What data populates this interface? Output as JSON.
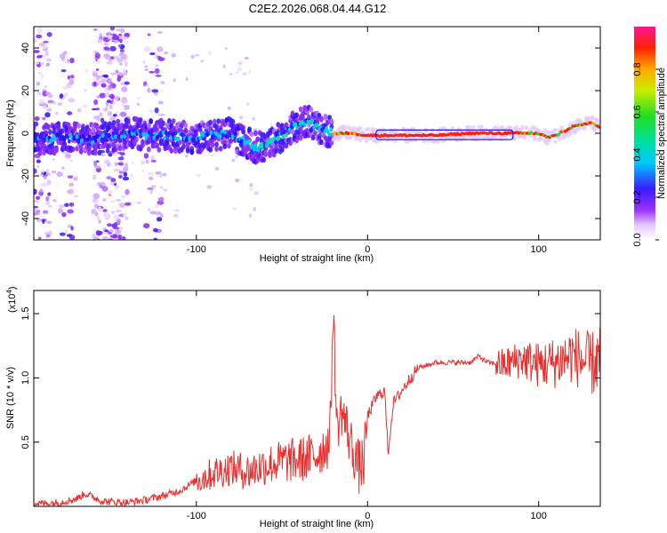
{
  "title": "C2E2.2026.068.04.44.G12",
  "chart_data": [
    {
      "type": "heatmap",
      "xlabel": "Height of straight line (km)",
      "ylabel": "Frequency (Hz)",
      "xlim": [
        -195,
        136
      ],
      "ylim": [
        -50,
        50
      ],
      "xticks": [
        -100,
        0,
        100
      ],
      "yticks": [
        -40,
        -20,
        0,
        20,
        40
      ],
      "colorbar": {
        "label": "Normalized spectral amplitude",
        "range": [
          0.0,
          1.0
        ],
        "ticks": [
          "0.0",
          "0.2",
          "0.4",
          "0.6",
          "0.8"
        ]
      },
      "ridge": {
        "x": [
          -195,
          -180,
          -160,
          -140,
          -120,
          -100,
          -80,
          -65,
          -55,
          -45,
          -35,
          -28,
          -20,
          -10,
          0,
          10,
          40,
          60,
          80,
          95,
          100,
          105,
          110,
          120,
          130,
          136
        ],
        "y": [
          -3,
          -2,
          -3,
          0,
          -1,
          -2,
          0,
          -7,
          -4,
          2,
          6,
          2,
          0,
          0,
          -1,
          -1,
          -1,
          0,
          0,
          0,
          0,
          -2,
          -1,
          3,
          5,
          3
        ]
      }
    },
    {
      "type": "line",
      "xlabel": "Height of straight line (km)",
      "ylabel": "SNR (10 * v/v)",
      "y_multiplier": "(x10",
      "y_multiplier_exp": "4",
      "xlim": [
        -195,
        136
      ],
      "ylim": [
        0,
        1.68
      ],
      "xticks": [
        -100,
        0,
        100
      ],
      "yticks": [
        0.5,
        1.0,
        1.5
      ],
      "color": "#e8302f",
      "series": [
        {
          "x": [
            -195,
            -180,
            -170,
            -165,
            -155,
            -140,
            -130,
            -120,
            -110,
            -100,
            -90,
            -80,
            -70,
            -60,
            -50,
            -40,
            -30,
            -22,
            -20,
            -18,
            -15,
            -10,
            -5,
            -2,
            0,
            5,
            10,
            12,
            15,
            20,
            25,
            30,
            40,
            50,
            60,
            65,
            70,
            80,
            90,
            100,
            110,
            120,
            130,
            136
          ],
          "y": [
            0.02,
            0.03,
            0.06,
            0.1,
            0.04,
            0.03,
            0.05,
            0.08,
            0.12,
            0.2,
            0.26,
            0.3,
            0.27,
            0.32,
            0.35,
            0.36,
            0.4,
            0.5,
            1.55,
            0.6,
            0.75,
            0.5,
            0.3,
            0.35,
            0.7,
            0.85,
            0.9,
            0.42,
            0.8,
            0.9,
            1.0,
            1.08,
            1.12,
            1.12,
            1.12,
            1.17,
            1.12,
            1.1,
            1.15,
            1.1,
            1.12,
            1.18,
            1.1,
            1.15
          ]
        }
      ]
    }
  ]
}
